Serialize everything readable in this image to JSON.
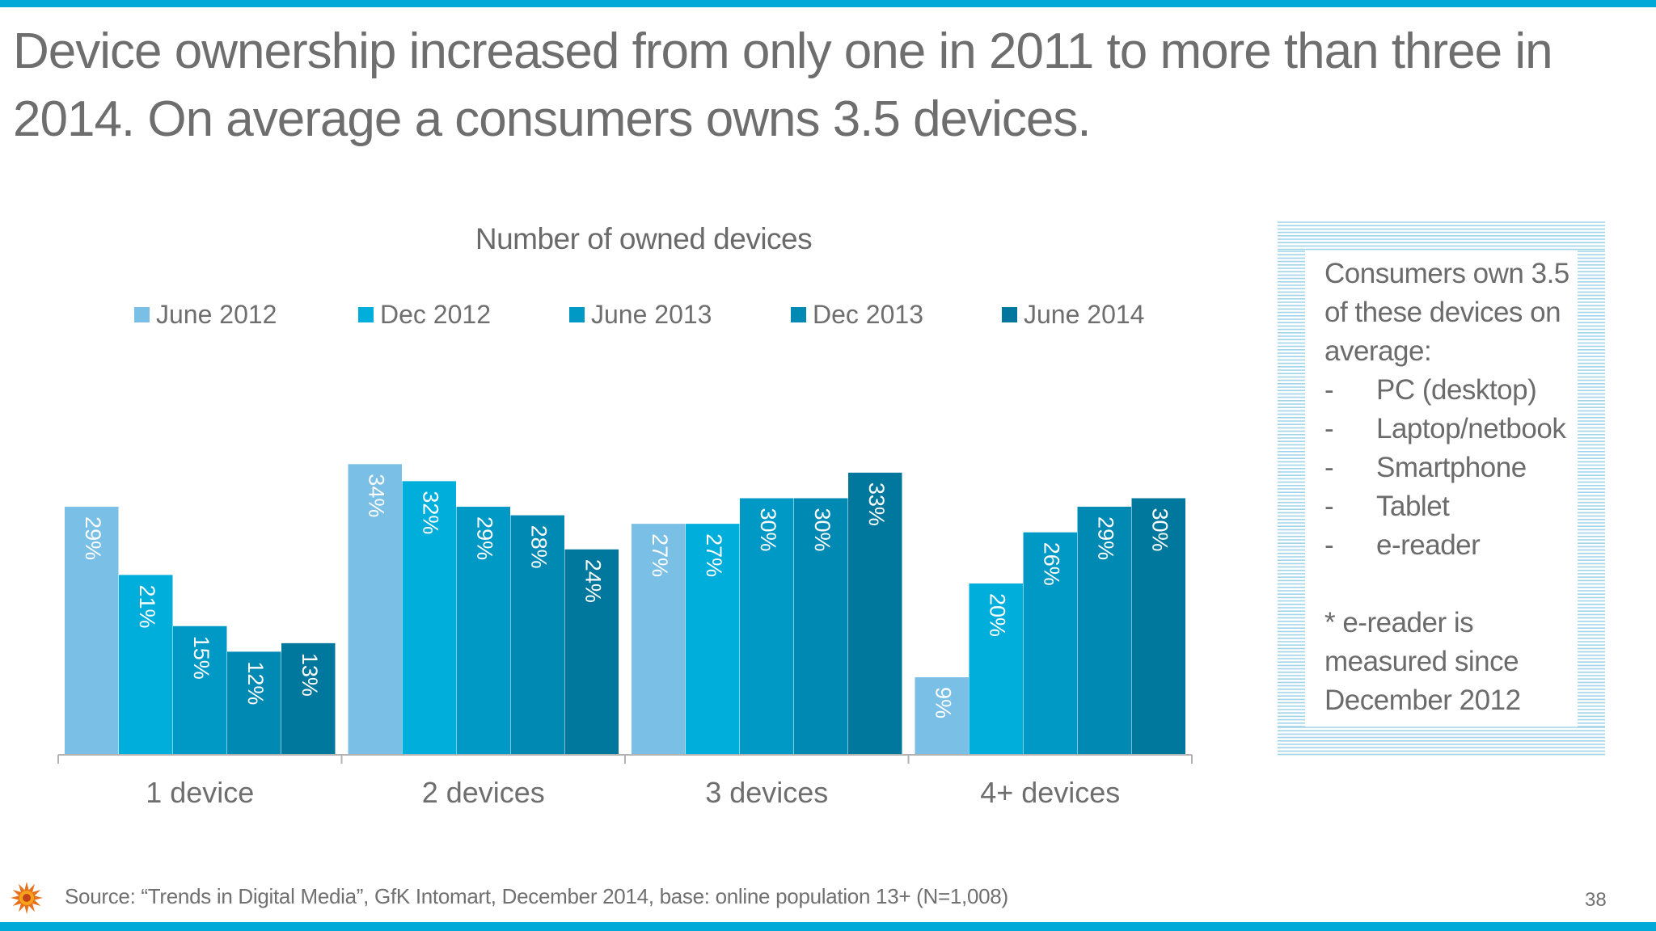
{
  "slide": {
    "title": "Device ownership increased from only one in 2011 to more than three in 2014. On average a consumers owns 3.5 devices.",
    "source": "Source: “Trends in Digital Media”, GfK Intomart, December 2014, base: online population 13+ (N=1,008)",
    "page_number": "38"
  },
  "side_panel": {
    "intro": [
      "Consumers own 3.5",
      "of these devices on",
      "average:"
    ],
    "items": [
      "PC (desktop)",
      "Laptop/netbook",
      "Smartphone",
      "Tablet",
      "e-reader"
    ],
    "dash": "-",
    "note": [
      "* e-reader is",
      "measured since",
      "December 2012"
    ]
  },
  "colors": {
    "accent_bar": "#00a9d8",
    "series": [
      "#79bfe6",
      "#00aedb",
      "#0099c6",
      "#0089b3",
      "#00779c"
    ]
  },
  "chart_data": {
    "type": "bar",
    "title": "Number of owned devices",
    "xlabel": "",
    "ylabel": "",
    "ylim": [
      0,
      36
    ],
    "grid": false,
    "legend_position": "top",
    "categories": [
      "1 device",
      "2 devices",
      "3 devices",
      "4+ devices"
    ],
    "series": [
      {
        "name": "June 2012",
        "values": [
          29,
          34,
          27,
          9
        ]
      },
      {
        "name": "Dec 2012",
        "values": [
          21,
          32,
          27,
          20
        ]
      },
      {
        "name": "June 2013",
        "values": [
          15,
          29,
          30,
          26
        ]
      },
      {
        "name": "Dec 2013",
        "values": [
          12,
          28,
          30,
          29
        ]
      },
      {
        "name": "June 2014",
        "values": [
          13,
          24,
          33,
          30
        ]
      }
    ],
    "value_suffix": "%"
  }
}
